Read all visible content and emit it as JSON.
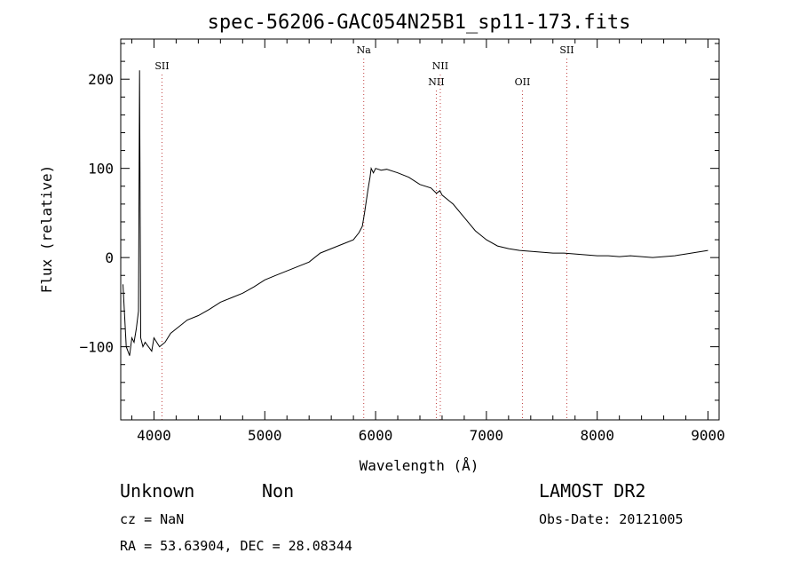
{
  "chart_data": {
    "type": "line",
    "title": "spec-56206-GAC054N25B1_sp11-173.fits",
    "xlabel": "Wavelength (Å)",
    "ylabel": "Flux (relative)",
    "xlim": [
      3700,
      9100
    ],
    "ylim": [
      -182,
      245
    ],
    "x_ticks": [
      4000,
      5000,
      6000,
      7000,
      8000,
      9000
    ],
    "y_ticks": [
      -100,
      0,
      100,
      200
    ],
    "x_tick_labels": [
      "4000",
      "5000",
      "6000",
      "7000",
      "8000",
      "9000"
    ],
    "y_tick_labels": [
      "−100",
      "0",
      "100",
      "200"
    ],
    "series": [
      {
        "x": [
          3720,
          3750,
          3780,
          3800,
          3820,
          3840,
          3860,
          3870,
          3880,
          3900,
          3920,
          3950,
          3980,
          4000,
          4050,
          4100,
          4150,
          4200,
          4300,
          4400,
          4500,
          4600,
          4700,
          4800,
          4900,
          5000,
          5100,
          5200,
          5300,
          5400,
          5500,
          5600,
          5700,
          5800,
          5850,
          5880,
          5900,
          5930,
          5950,
          5960,
          5980,
          6000,
          6050,
          6100,
          6200,
          6300,
          6400,
          6500,
          6550,
          6580,
          6600,
          6700,
          6800,
          6900,
          7000,
          7100,
          7200,
          7300,
          7400,
          7500,
          7600,
          7700,
          7800,
          7900,
          8000,
          8100,
          8200,
          8300,
          8400,
          8500,
          8600,
          8700,
          8800,
          8900,
          9000
        ],
        "values": [
          -30,
          -100,
          -110,
          -90,
          -95,
          -80,
          -60,
          210,
          -90,
          -100,
          -95,
          -100,
          -105,
          -90,
          -100,
          -95,
          -85,
          -80,
          -70,
          -65,
          -58,
          -50,
          -45,
          -40,
          -33,
          -25,
          -20,
          -15,
          -10,
          -5,
          5,
          10,
          15,
          20,
          28,
          35,
          50,
          75,
          90,
          100,
          95,
          100,
          98,
          99,
          95,
          90,
          82,
          78,
          72,
          75,
          70,
          60,
          45,
          30,
          20,
          13,
          10,
          8,
          7,
          6,
          5,
          5,
          4,
          3,
          2,
          2,
          1,
          2,
          1,
          0,
          1,
          2,
          4,
          6,
          8
        ]
      }
    ],
    "line_markers": [
      {
        "name": "SII",
        "x": 4072,
        "row": 1
      },
      {
        "name": "Na",
        "x": 5893,
        "row": 0
      },
      {
        "name": "NII",
        "x": 6548,
        "row": 2
      },
      {
        "name": "NII",
        "x": 6584,
        "row": 1
      },
      {
        "name": "OII",
        "x": 7325,
        "row": 2
      },
      {
        "name": "SII",
        "x": 7726,
        "row": 0
      }
    ],
    "colors": {
      "spectrum": "#000000",
      "line_markers": "#c04040",
      "frame": "#000000"
    },
    "grid": false
  },
  "info": {
    "class": "Unknown",
    "subclass": "Non",
    "cz": "cz = NaN",
    "coords": "RA =  53.63904, DEC =  28.08344",
    "survey": "LAMOST DR2",
    "obsdate": "Obs-Date: 20121005"
  }
}
